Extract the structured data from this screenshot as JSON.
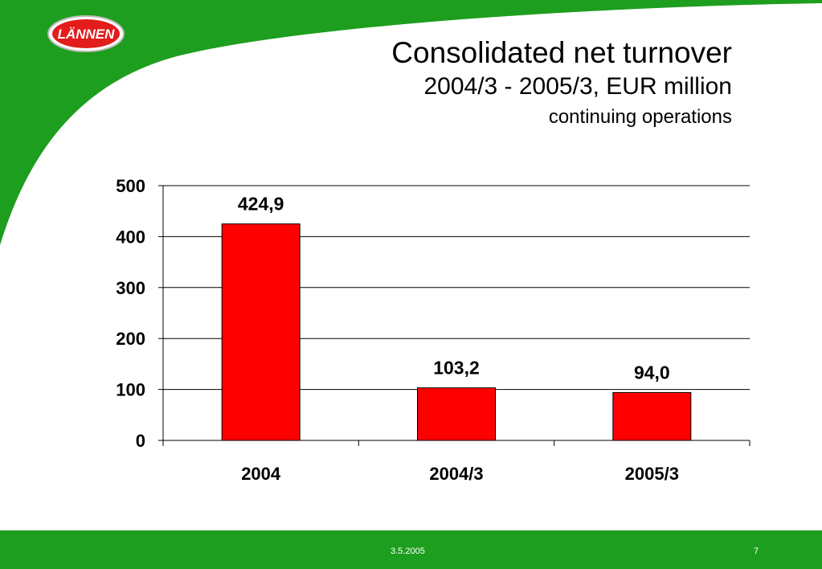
{
  "logo_text": "LÄNNEN",
  "title": {
    "line1": "Consolidated net turnover",
    "line2": "2004/3 - 2005/3, EUR million",
    "line3": "continuing operations"
  },
  "footer": {
    "date": "3.5.2005",
    "page": "7"
  },
  "colors": {
    "brand_green": "#1e9e1e",
    "bar": "#ff0000"
  },
  "chart_data": {
    "type": "bar",
    "categories": [
      "2004",
      "2004/3",
      "2005/3"
    ],
    "values": [
      424.9,
      103.2,
      94.0
    ],
    "data_labels": [
      "424,9",
      "103,2",
      "94,0"
    ],
    "y_ticks": [
      "0",
      "100",
      "200",
      "300",
      "400",
      "500"
    ],
    "ylim": [
      0,
      500
    ],
    "grid": true,
    "legend": "none"
  }
}
